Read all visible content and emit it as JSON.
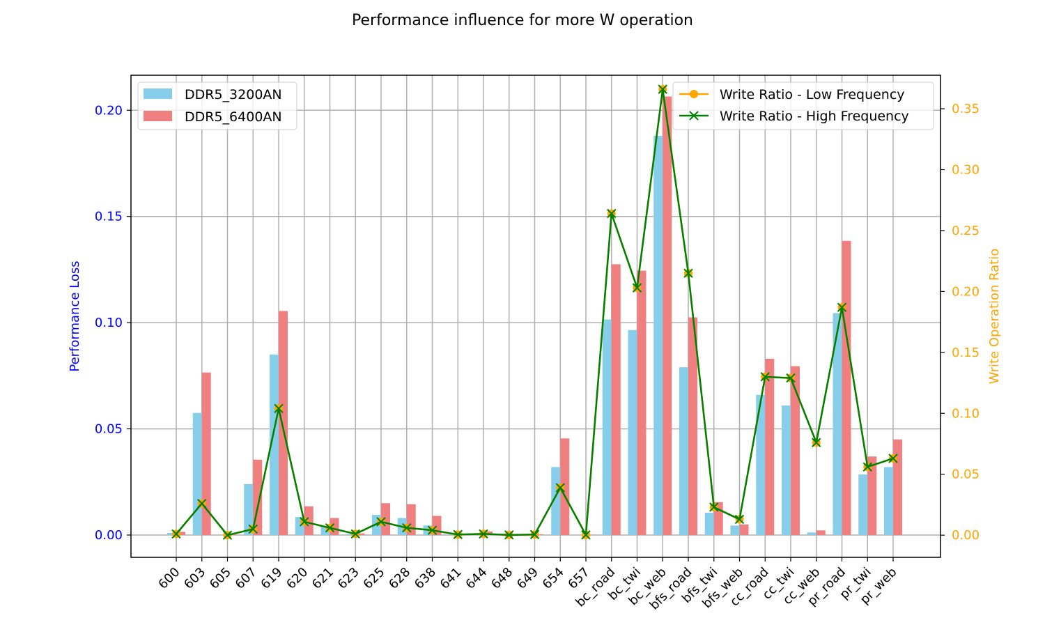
{
  "chart_data": {
    "type": "bar",
    "title": "Performance influence for more W operation",
    "categories": [
      "600",
      "603",
      "605",
      "607",
      "619",
      "620",
      "621",
      "623",
      "625",
      "628",
      "638",
      "641",
      "644",
      "648",
      "649",
      "654",
      "657",
      "bc_road",
      "bc_twi",
      "bc_web",
      "bfs_road",
      "bfs_twi",
      "bfs_web",
      "cc_road",
      "cc_twi",
      "cc_web",
      "pr_road",
      "pr_twi",
      "pr_web"
    ],
    "xlabel": "",
    "ylabel": "Performance Loss",
    "y2label": "Write Operation Ratio",
    "ylim": [
      -0.0105,
      0.2165
    ],
    "y2lim": [
      -0.0182,
      0.3775
    ],
    "yticks": [
      "0.00",
      "0.05",
      "0.10",
      "0.15",
      "0.20"
    ],
    "y2ticks": [
      "0.00",
      "0.05",
      "0.10",
      "0.15",
      "0.20",
      "0.25",
      "0.30",
      "0.35"
    ],
    "grid": true,
    "bar_series": [
      {
        "name": "DDR5_3200AN",
        "color": "#87ceeb",
        "values": [
          0.001,
          0.0575,
          0.0,
          0.024,
          0.085,
          0.0085,
          0.004,
          0.0005,
          0.0095,
          0.008,
          0.0045,
          0.0003,
          0.0007,
          0.0002,
          0.0003,
          0.032,
          0.0001,
          0.1015,
          0.0965,
          0.188,
          0.079,
          0.0105,
          0.0045,
          0.066,
          0.061,
          0.0012,
          0.1045,
          0.0285,
          0.032
        ]
      },
      {
        "name": "DDR5_6400AN",
        "color": "#f08080",
        "values": [
          0.0015,
          0.0765,
          0.0003,
          0.0355,
          0.1055,
          0.0135,
          0.008,
          0.0008,
          0.015,
          0.0145,
          0.009,
          0.0003,
          0.0017,
          0.0003,
          0.0003,
          0.0455,
          0.0001,
          0.1275,
          0.1245,
          0.2065,
          0.1025,
          0.0155,
          0.005,
          0.083,
          0.0795,
          0.0022,
          0.1385,
          0.037,
          0.045
        ]
      }
    ],
    "line_series": [
      {
        "name": "Write Ratio - Low Frequency",
        "color": "#ffa500",
        "marker": "circle",
        "values": [
          0.001,
          0.026,
          0.0,
          0.005,
          0.104,
          0.011,
          0.006,
          0.001,
          0.011,
          0.006,
          0.004,
          0.0005,
          0.001,
          0.0002,
          0.0005,
          0.039,
          0.0002,
          0.264,
          0.203,
          0.366,
          0.215,
          0.023,
          0.013,
          0.13,
          0.129,
          0.076,
          0.187,
          0.056,
          0.063
        ]
      },
      {
        "name": "Write Ratio - High Frequency",
        "color": "#008000",
        "marker": "x",
        "values": [
          0.001,
          0.026,
          0.0,
          0.005,
          0.104,
          0.011,
          0.006,
          0.001,
          0.011,
          0.006,
          0.004,
          0.0005,
          0.001,
          0.0002,
          0.0005,
          0.039,
          0.0002,
          0.264,
          0.203,
          0.366,
          0.215,
          0.023,
          0.013,
          0.13,
          0.129,
          0.076,
          0.187,
          0.056,
          0.063
        ]
      }
    ],
    "colors": {
      "left_axis": "#0000ff",
      "right_axis": "#ffa500",
      "grid": "#b0b0b0"
    },
    "legend_bars": "top-left",
    "legend_lines": "top-right"
  }
}
